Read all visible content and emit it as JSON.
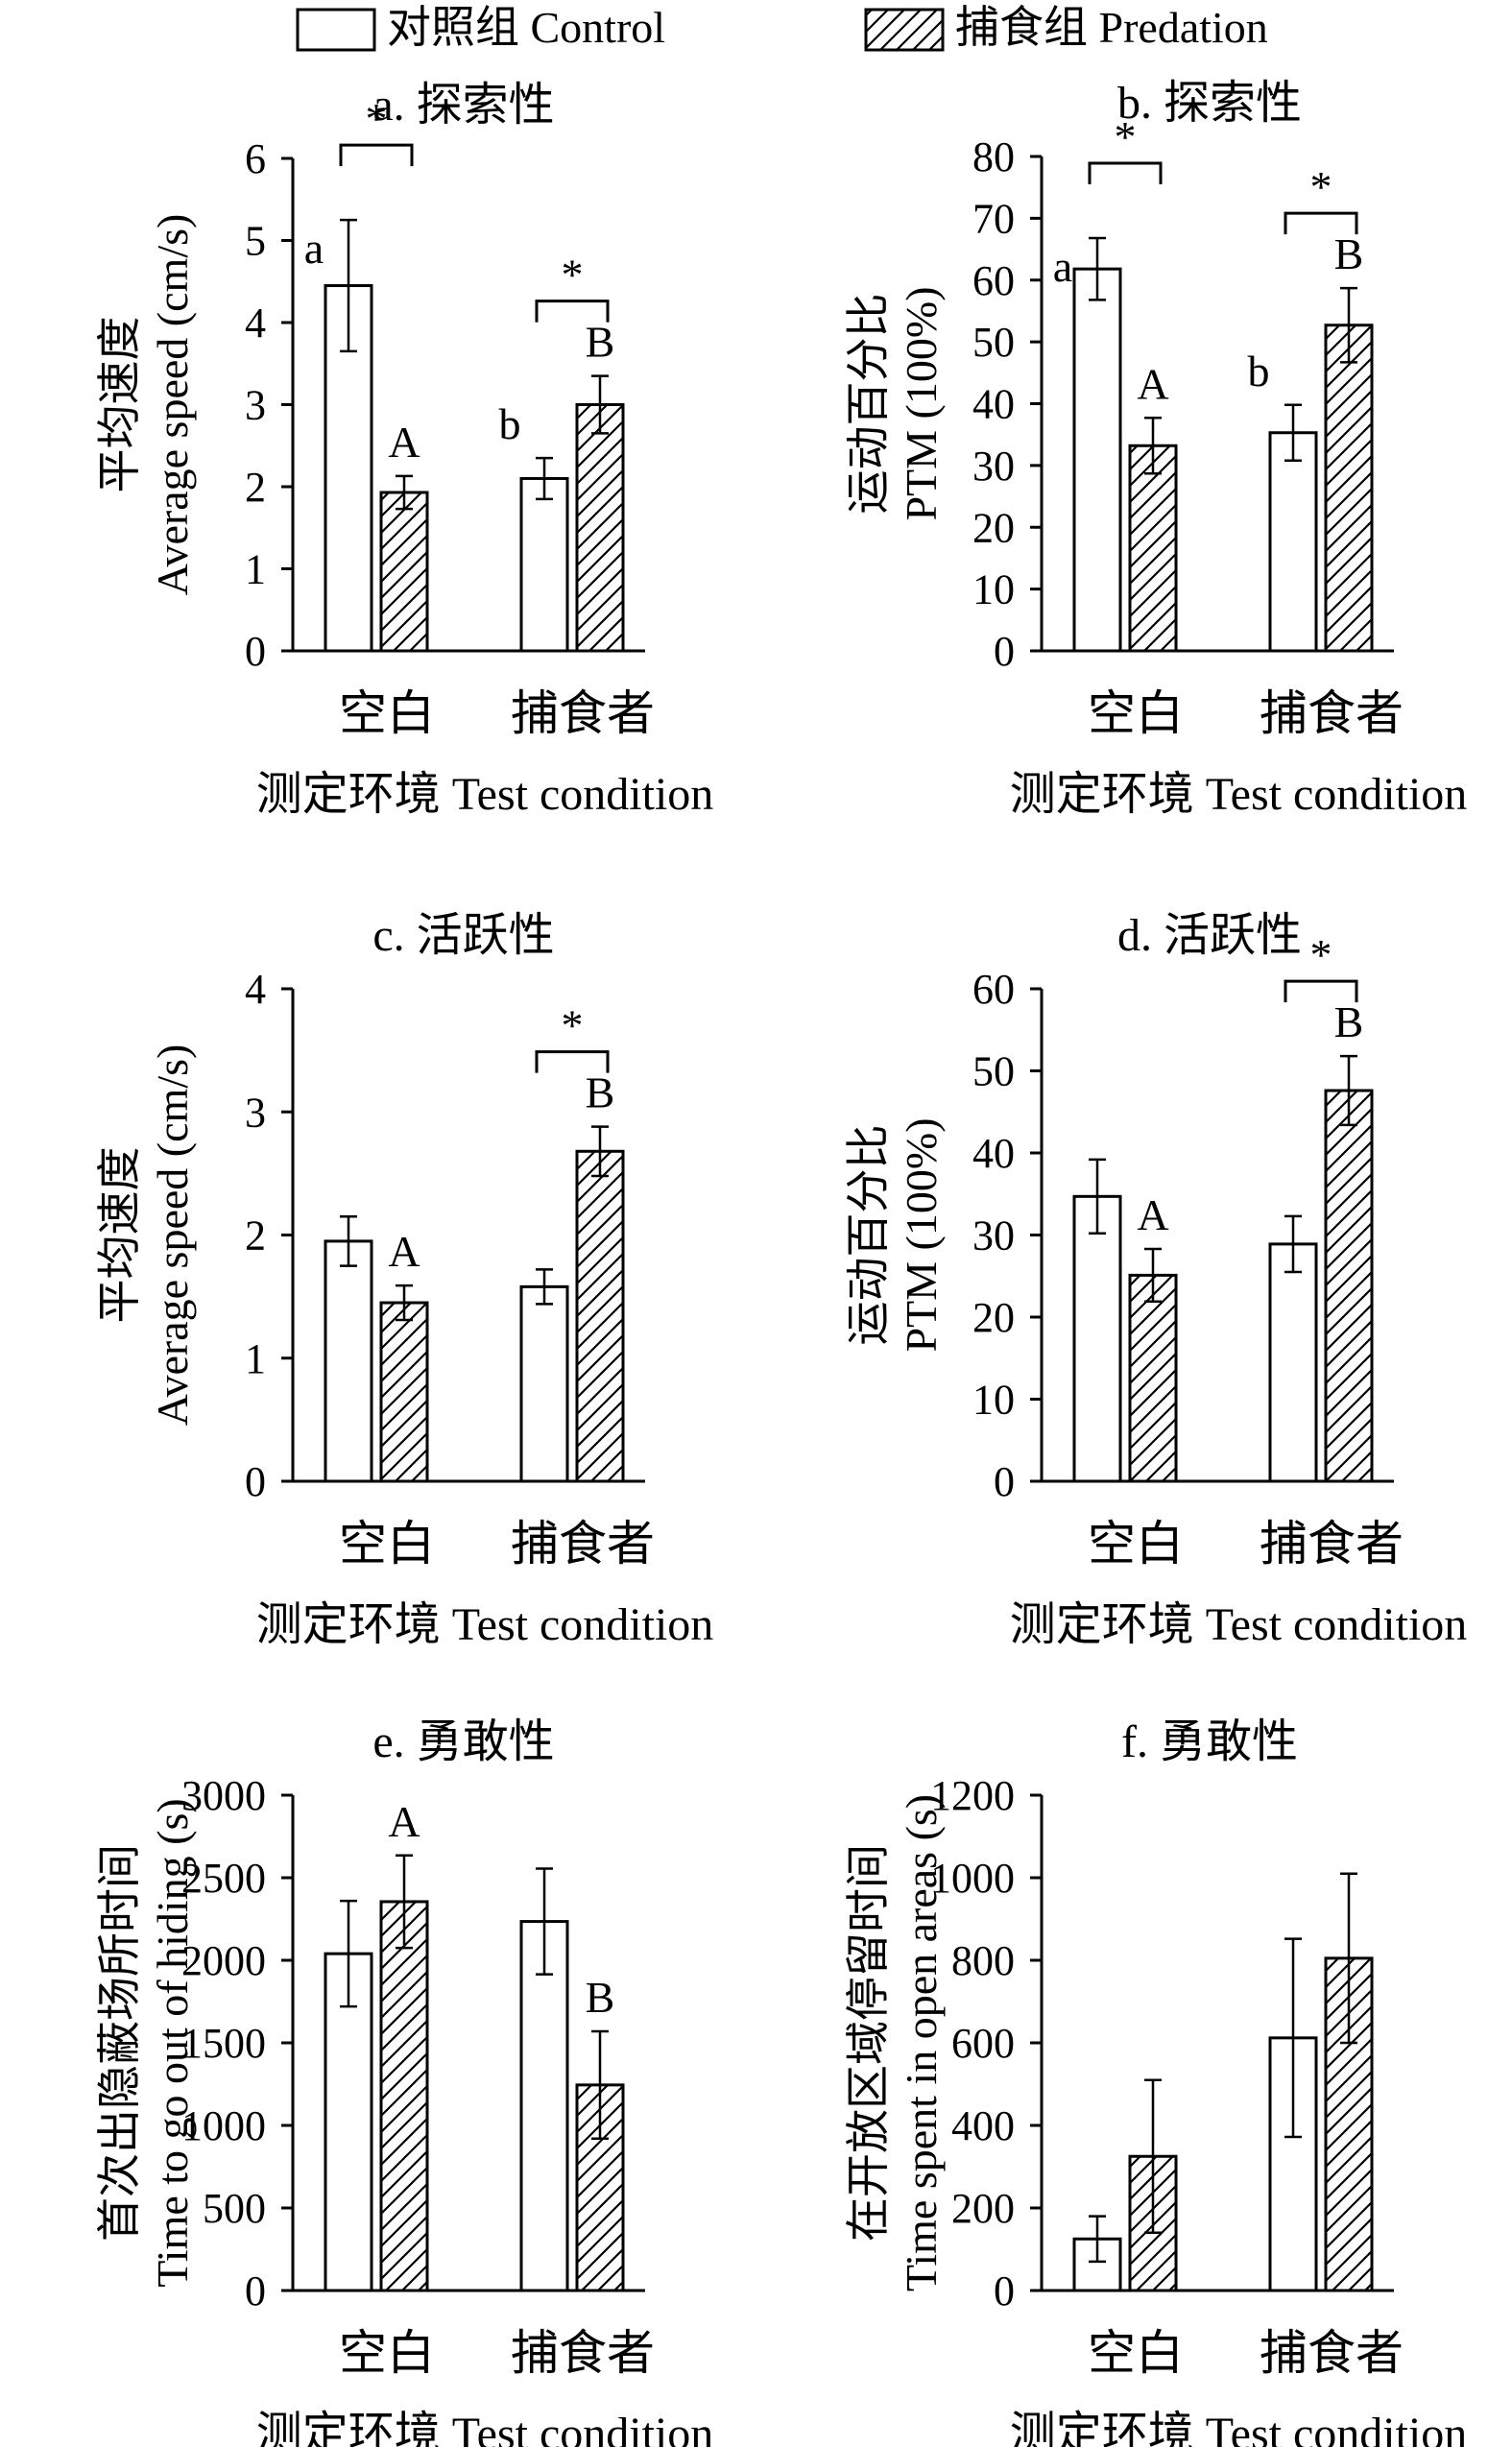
{
  "legend": {
    "control": "对照组 Control",
    "predation": "捕食组 Predation"
  },
  "colors": {
    "ink": "#000000",
    "background": "#ffffff"
  },
  "chart_data": [
    {
      "id": "a",
      "type": "bar",
      "title": "a. 探索性",
      "ylabel_zh": "平均速度",
      "ylabel_en": "Average speed (cm/s)",
      "xlabel": "测定环境 Test condition",
      "categories": [
        "空白",
        "捕食者"
      ],
      "ylim": [
        0,
        6
      ],
      "yticks": [
        0,
        1,
        2,
        3,
        4,
        5,
        6
      ],
      "series": [
        {
          "name": "对照组 Control",
          "values": [
            4.45,
            2.1
          ],
          "errors": [
            0.8,
            0.25
          ],
          "labels": [
            "a",
            "b"
          ]
        },
        {
          "name": "捕食组 Predation",
          "values": [
            1.93,
            3.0
          ],
          "errors": [
            0.2,
            0.35
          ],
          "labels": [
            "A",
            "B"
          ]
        }
      ],
      "significance": [
        0,
        1
      ]
    },
    {
      "id": "b",
      "type": "bar",
      "title": "b. 探索性",
      "ylabel_zh": "运动百分比",
      "ylabel_en": "PTM (100%)",
      "xlabel": "测定环境 Test condition",
      "categories": [
        "空白",
        "捕食者"
      ],
      "ylim": [
        0,
        80
      ],
      "yticks": [
        0,
        10,
        20,
        30,
        40,
        50,
        60,
        70,
        80
      ],
      "series": [
        {
          "name": "对照组 Control",
          "values": [
            61.8,
            35.3
          ],
          "errors": [
            5,
            4.5
          ],
          "labels": [
            "a",
            "b"
          ]
        },
        {
          "name": "捕食组 Predation",
          "values": [
            33.2,
            52.7
          ],
          "errors": [
            4.5,
            6
          ],
          "labels": [
            "A",
            "B"
          ]
        }
      ],
      "significance": [
        0,
        1
      ]
    },
    {
      "id": "c",
      "type": "bar",
      "title": "c. 活跃性",
      "ylabel_zh": "平均速度",
      "ylabel_en": "Average speed (cm/s)",
      "xlabel": "测定环境 Test condition",
      "categories": [
        "空白",
        "捕食者"
      ],
      "ylim": [
        0,
        4
      ],
      "yticks": [
        0,
        1,
        2,
        3,
        4
      ],
      "series": [
        {
          "name": "对照组 Control",
          "values": [
            1.95,
            1.58
          ],
          "errors": [
            0.2,
            0.14
          ],
          "labels": [
            "",
            ""
          ]
        },
        {
          "name": "捕食组 Predation",
          "values": [
            1.45,
            2.68
          ],
          "errors": [
            0.14,
            0.2
          ],
          "labels": [
            "A",
            "B"
          ]
        }
      ],
      "significance": [
        1
      ]
    },
    {
      "id": "d",
      "type": "bar",
      "title": "d. 活跃性",
      "ylabel_zh": "运动百分比",
      "ylabel_en": "PTM (100%)",
      "xlabel": "测定环境 Test condition",
      "categories": [
        "空白",
        "捕食者"
      ],
      "ylim": [
        0,
        60
      ],
      "yticks": [
        0,
        10,
        20,
        30,
        40,
        50,
        60
      ],
      "series": [
        {
          "name": "对照组 Control",
          "values": [
            34.7,
            28.9
          ],
          "errors": [
            4.5,
            3.4
          ],
          "labels": [
            "",
            ""
          ]
        },
        {
          "name": "捕食组 Predation",
          "values": [
            25.1,
            47.6
          ],
          "errors": [
            3.2,
            4.2
          ],
          "labels": [
            "A",
            "B"
          ]
        }
      ],
      "significance": [
        1
      ]
    },
    {
      "id": "e",
      "type": "bar",
      "title": "e. 勇敢性",
      "ylabel_zh": "首次出隐蔽场所时间",
      "ylabel_en": "Time to go out of hiding (s)",
      "xlabel": "测定环境 Test condition",
      "categories": [
        "空白",
        "捕食者"
      ],
      "ylim": [
        0,
        3000
      ],
      "yticks": [
        0,
        500,
        1000,
        1500,
        2000,
        2500,
        3000
      ],
      "series": [
        {
          "name": "对照组 Control",
          "values": [
            2040,
            2235
          ],
          "errors": [
            320,
            320
          ],
          "labels": [
            "",
            ""
          ]
        },
        {
          "name": "捕食组 Predation",
          "values": [
            2355,
            1245
          ],
          "errors": [
            280,
            325
          ],
          "labels": [
            "A",
            "B"
          ]
        }
      ],
      "significance": []
    },
    {
      "id": "f",
      "type": "bar",
      "title": "f. 勇敢性",
      "ylabel_zh": "在开放区域停留时间",
      "ylabel_en": "Time spent in open areas (s)",
      "xlabel": "测定环境 Test condition",
      "categories": [
        "空白",
        "捕食者"
      ],
      "ylim": [
        0,
        1200
      ],
      "yticks": [
        0,
        200,
        400,
        600,
        800,
        1000,
        1200
      ],
      "series": [
        {
          "name": "对照组 Control",
          "values": [
            125,
            612
          ],
          "errors": [
            55,
            240
          ],
          "labels": [
            "",
            ""
          ]
        },
        {
          "name": "捕食组 Predation",
          "values": [
            325,
            805
          ],
          "errors": [
            185,
            205
          ],
          "labels": [
            "",
            ""
          ]
        }
      ],
      "significance": []
    }
  ]
}
